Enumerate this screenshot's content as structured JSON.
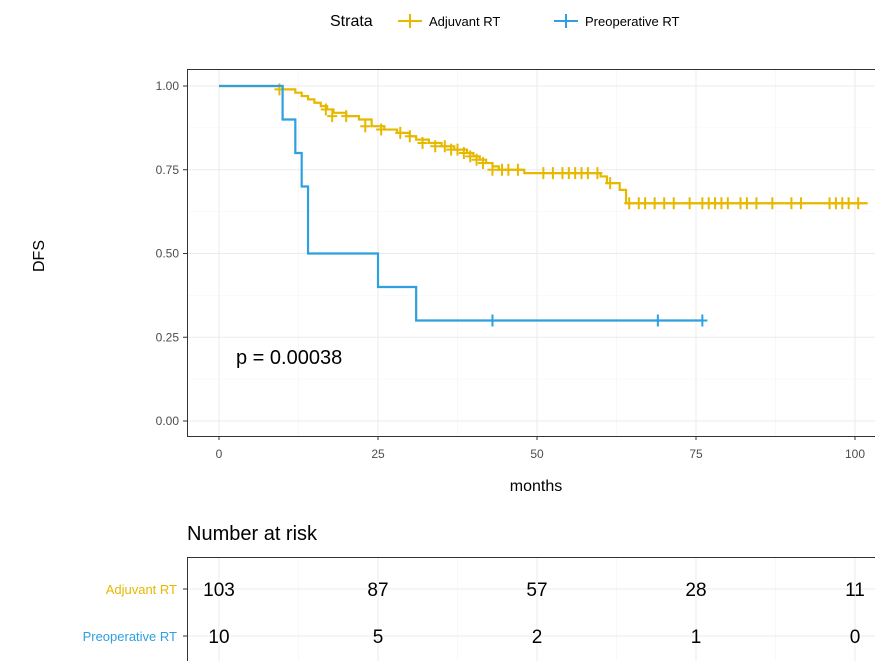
{
  "chart_data": {
    "type": "line",
    "subtype": "kaplan-meier",
    "xlabel": "months",
    "ylabel": "DFS",
    "xlim": [
      -5,
      102
    ],
    "ylim": [
      -0.05,
      1.05
    ],
    "xticks": [
      0,
      25,
      50,
      75,
      100
    ],
    "yticks": [
      0.0,
      0.25,
      0.5,
      0.75,
      1.0
    ],
    "ytick_labels": [
      "0.00",
      "0.25",
      "0.50",
      "0.75",
      "1.00"
    ],
    "grid": true,
    "legend": {
      "title": "Strata",
      "position": "top"
    },
    "annotation": "p = 0.00038",
    "series": [
      {
        "name": "Adjuvant RT",
        "color": "#E7B800",
        "steps": [
          [
            0,
            1.0
          ],
          [
            10,
            0.99
          ],
          [
            12,
            0.98
          ],
          [
            13,
            0.97
          ],
          [
            14,
            0.96
          ],
          [
            15,
            0.95
          ],
          [
            16,
            0.94
          ],
          [
            17,
            0.93
          ],
          [
            18,
            0.92
          ],
          [
            20,
            0.91
          ],
          [
            22,
            0.9
          ],
          [
            24,
            0.88
          ],
          [
            26,
            0.87
          ],
          [
            28,
            0.86
          ],
          [
            30,
            0.85
          ],
          [
            31,
            0.84
          ],
          [
            33,
            0.83
          ],
          [
            35,
            0.82
          ],
          [
            37,
            0.81
          ],
          [
            39,
            0.8
          ],
          [
            40,
            0.79
          ],
          [
            41,
            0.78
          ],
          [
            42,
            0.77
          ],
          [
            43,
            0.76
          ],
          [
            44,
            0.75
          ],
          [
            48,
            0.74
          ],
          [
            60,
            0.73
          ],
          [
            61,
            0.71
          ],
          [
            63,
            0.69
          ],
          [
            64,
            0.65
          ],
          [
            102,
            0.65
          ]
        ],
        "censored": [
          [
            9.5,
            0.99
          ],
          [
            16.8,
            0.93
          ],
          [
            17.8,
            0.91
          ],
          [
            20,
            0.91
          ],
          [
            23,
            0.88
          ],
          [
            25.5,
            0.87
          ],
          [
            28.5,
            0.86
          ],
          [
            30,
            0.85
          ],
          [
            32,
            0.83
          ],
          [
            34,
            0.82
          ],
          [
            35.5,
            0.82
          ],
          [
            36.5,
            0.81
          ],
          [
            37.5,
            0.81
          ],
          [
            38.5,
            0.8
          ],
          [
            39.5,
            0.79
          ],
          [
            40.5,
            0.78
          ],
          [
            41.5,
            0.77
          ],
          [
            43,
            0.75
          ],
          [
            44.5,
            0.75
          ],
          [
            45.5,
            0.75
          ],
          [
            47,
            0.75
          ],
          [
            51,
            0.74
          ],
          [
            52.5,
            0.74
          ],
          [
            54,
            0.74
          ],
          [
            55,
            0.74
          ],
          [
            56,
            0.74
          ],
          [
            57,
            0.74
          ],
          [
            58,
            0.74
          ],
          [
            59.5,
            0.74
          ],
          [
            61.5,
            0.71
          ],
          [
            64.5,
            0.65
          ],
          [
            66,
            0.65
          ],
          [
            67,
            0.65
          ],
          [
            68.5,
            0.65
          ],
          [
            70,
            0.65
          ],
          [
            71.5,
            0.65
          ],
          [
            74,
            0.65
          ],
          [
            76,
            0.65
          ],
          [
            77,
            0.65
          ],
          [
            78,
            0.65
          ],
          [
            79,
            0.65
          ],
          [
            80,
            0.65
          ],
          [
            82,
            0.65
          ],
          [
            83,
            0.65
          ],
          [
            84.5,
            0.65
          ],
          [
            87,
            0.65
          ],
          [
            90,
            0.65
          ],
          [
            91.5,
            0.65
          ],
          [
            96,
            0.65
          ],
          [
            97,
            0.65
          ],
          [
            98,
            0.65
          ],
          [
            99,
            0.65
          ],
          [
            100.5,
            0.65
          ]
        ]
      },
      {
        "name": "Preoperative RT",
        "color": "#2E9FDF",
        "steps": [
          [
            0,
            1.0
          ],
          [
            9.8,
            1.0
          ],
          [
            10,
            0.9
          ],
          [
            12,
            0.8
          ],
          [
            13,
            0.7
          ],
          [
            14,
            0.5
          ],
          [
            25,
            0.4
          ],
          [
            31,
            0.3
          ],
          [
            76,
            0.3
          ]
        ],
        "censored": [
          [
            43,
            0.3
          ],
          [
            69,
            0.3
          ],
          [
            76,
            0.3
          ]
        ]
      }
    ]
  },
  "risk_table": {
    "title": "Number at risk",
    "times": [
      0,
      25,
      50,
      75,
      100
    ],
    "rows": [
      {
        "name": "Adjuvant RT",
        "color": "#E7B800",
        "values": [
          "103",
          "87",
          "57",
          "28",
          "11"
        ]
      },
      {
        "name": "Preoperative RT",
        "color": "#2E9FDF",
        "values": [
          "10",
          "5",
          "2",
          "1",
          "0"
        ]
      }
    ]
  }
}
